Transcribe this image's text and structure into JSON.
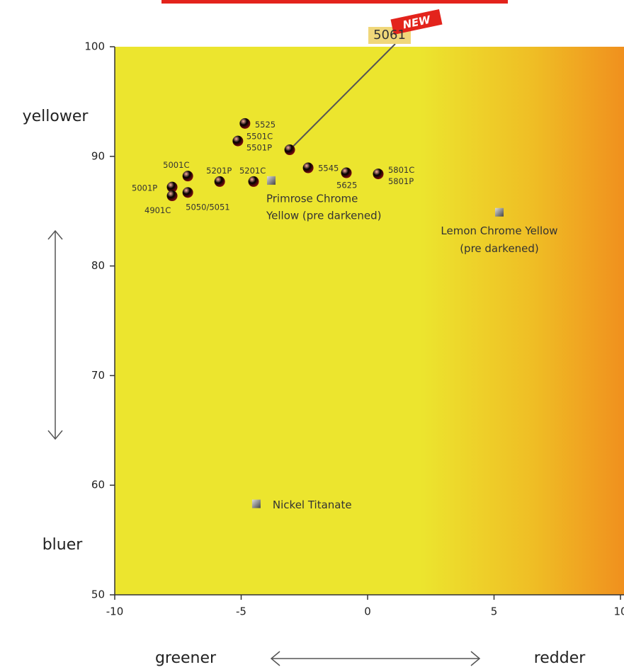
{
  "chart_data": {
    "type": "scatter",
    "xlim": [
      -10,
      10
    ],
    "ylim": [
      50,
      100
    ],
    "xticks": [
      -10,
      -5,
      0,
      5,
      10
    ],
    "yticks": [
      50,
      60,
      70,
      80,
      90,
      100
    ],
    "series": [
      {
        "color": "#e3231c",
        "marker": "circle",
        "x": [
          -4.85,
          -5.13,
          -2.35,
          -0.84,
          0.42,
          -7.11,
          -5.85,
          -4.51,
          -7.73,
          -7.73,
          -7.11
        ],
        "y": [
          93.0,
          91.4,
          88.95,
          88.5,
          88.4,
          88.2,
          87.7,
          87.7,
          87.2,
          86.4,
          86.7
        ],
        "labels": [
          [
            "5525"
          ],
          [
            "5501C",
            "5501P"
          ],
          [
            "5545"
          ],
          [
            "5625"
          ],
          [
            "5801C",
            "5801P"
          ],
          [
            "5001C"
          ],
          [
            "5201P"
          ],
          [
            "5201C"
          ],
          [
            "5001P"
          ],
          [
            "4901C"
          ],
          [
            "5050/5051"
          ]
        ]
      },
      {
        "color": "#e8731e",
        "marker": "circle",
        "x": [
          -3.08
        ],
        "y": [
          90.6
        ],
        "labels": [
          [
            "5061"
          ]
        ],
        "badge": "NEW"
      },
      {
        "color": "#777777",
        "marker": "square",
        "x": [
          -3.81,
          5.21,
          -4.4
        ],
        "y": [
          87.8,
          84.9,
          58.3
        ],
        "labels": [
          [
            "Primrose Chrome",
            "Yellow (pre darkened)"
          ],
          [
            "Lemon Chrome Yellow",
            "(pre darkened)"
          ],
          [
            "Nickel Titanate"
          ]
        ]
      }
    ],
    "annotations": {
      "top": "yellower",
      "bottom": "bluer",
      "left": "greener",
      "right": "redder"
    }
  }
}
